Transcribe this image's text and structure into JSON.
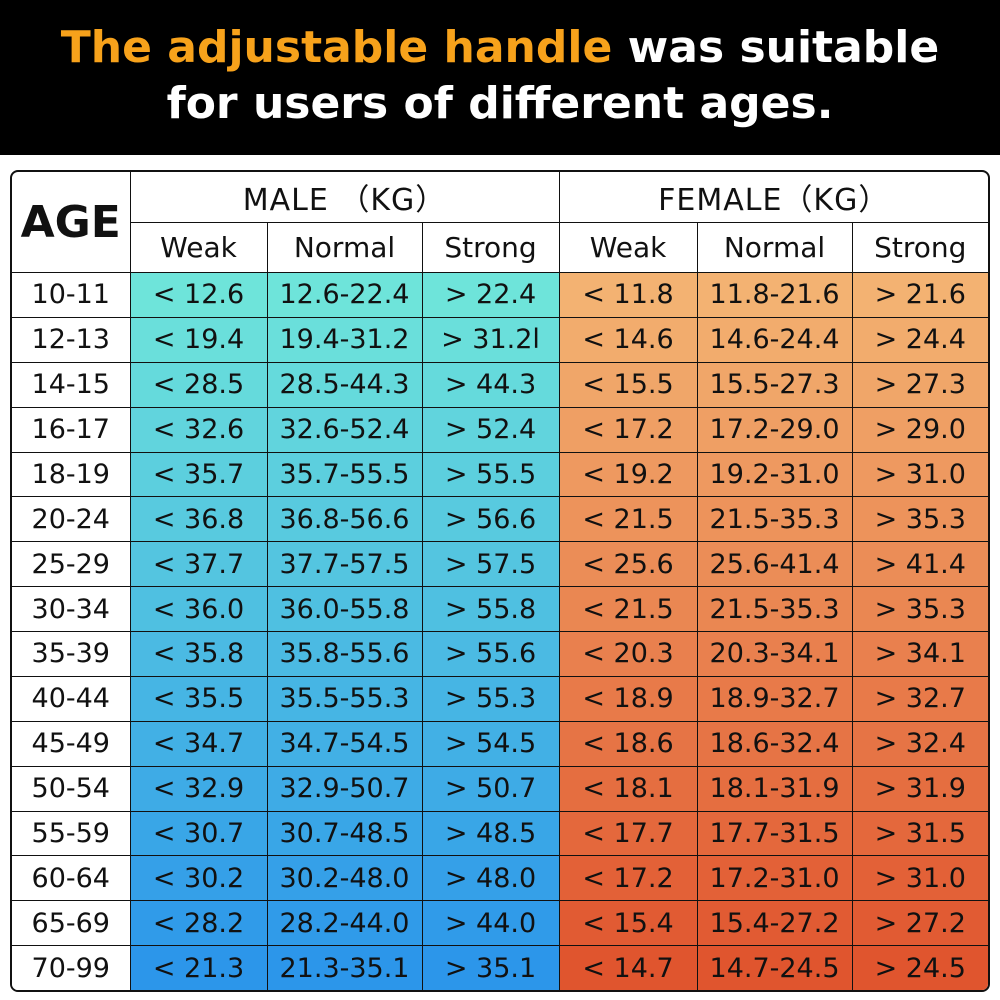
{
  "title": {
    "highlight": "The adjustable handle",
    "rest_line1": " was suitable",
    "line2": "for users of different ages."
  },
  "colors": {
    "male_top": "#6ee4da",
    "male_bottom": "#2c96ea",
    "female_top": "#f3b272",
    "female_bottom": "#e0552e",
    "highlight": "#f7a21b"
  },
  "table": {
    "age_header": "AGE",
    "male_header": "MALE （KG）",
    "female_header": "FEMALE（KG）",
    "sub_headers": [
      "Weak",
      "Normal",
      "Strong",
      "Weak",
      "Normal",
      "Strong"
    ],
    "rows": [
      [
        "10-11",
        "< 12.6",
        "12.6-22.4",
        "> 22.4",
        "< 11.8",
        "11.8-21.6",
        "> 21.6"
      ],
      [
        "12-13",
        "< 19.4",
        "19.4-31.2",
        "> 31.2l",
        "< 14.6",
        "14.6-24.4",
        "> 24.4"
      ],
      [
        "14-15",
        "< 28.5",
        "28.5-44.3",
        "> 44.3",
        "< 15.5",
        "15.5-27.3",
        "> 27.3"
      ],
      [
        "16-17",
        "< 32.6",
        "32.6-52.4",
        "> 52.4",
        "< 17.2",
        "17.2-29.0",
        "> 29.0"
      ],
      [
        "18-19",
        "< 35.7",
        "35.7-55.5",
        "> 55.5",
        "< 19.2",
        "19.2-31.0",
        "> 31.0"
      ],
      [
        "20-24",
        "< 36.8",
        "36.8-56.6",
        "> 56.6",
        "< 21.5",
        "21.5-35.3",
        "> 35.3"
      ],
      [
        "25-29",
        "< 37.7",
        "37.7-57.5",
        "> 57.5",
        "< 25.6",
        "25.6-41.4",
        "> 41.4"
      ],
      [
        "30-34",
        "< 36.0",
        "36.0-55.8",
        "> 55.8",
        "< 21.5",
        "21.5-35.3",
        "> 35.3"
      ],
      [
        "35-39",
        "< 35.8",
        "35.8-55.6",
        "> 55.6",
        "< 20.3",
        "20.3-34.1",
        "> 34.1"
      ],
      [
        "40-44",
        "< 35.5",
        "35.5-55.3",
        "> 55.3",
        "< 18.9",
        "18.9-32.7",
        "> 32.7"
      ],
      [
        "45-49",
        "< 34.7",
        "34.7-54.5",
        "> 54.5",
        "< 18.6",
        "18.6-32.4",
        "> 32.4"
      ],
      [
        "50-54",
        "< 32.9",
        "32.9-50.7",
        "> 50.7",
        "< 18.1",
        "18.1-31.9",
        "> 31.9"
      ],
      [
        "55-59",
        "< 30.7",
        "30.7-48.5",
        "> 48.5",
        "< 17.7",
        "17.7-31.5",
        "> 31.5"
      ],
      [
        "60-64",
        "< 30.2",
        "30.2-48.0",
        "> 48.0",
        "< 17.2",
        "17.2-31.0",
        "> 31.0"
      ],
      [
        "65-69",
        "< 28.2",
        "28.2-44.0",
        "> 44.0",
        "< 15.4",
        "15.4-27.2",
        "> 27.2"
      ],
      [
        "70-99",
        "< 21.3",
        "21.3-35.1",
        "> 35.1",
        "< 14.7",
        "14.7-24.5",
        "> 24.5"
      ]
    ]
  }
}
